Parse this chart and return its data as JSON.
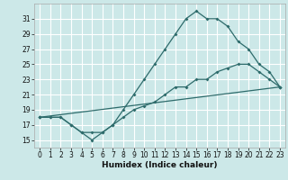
{
  "title": "",
  "xlabel": "Humidex (Indice chaleur)",
  "ylabel": "",
  "background_color": "#cce8e8",
  "line_color": "#2d6b6b",
  "grid_color": "#ffffff",
  "xlim": [
    -0.5,
    23.5
  ],
  "ylim": [
    14.0,
    33.0
  ],
  "xticks": [
    0,
    1,
    2,
    3,
    4,
    5,
    6,
    7,
    8,
    9,
    10,
    11,
    12,
    13,
    14,
    15,
    16,
    17,
    18,
    19,
    20,
    21,
    22,
    23
  ],
  "yticks": [
    15,
    17,
    19,
    21,
    23,
    25,
    27,
    29,
    31
  ],
  "line1_x": [
    0,
    1,
    2,
    3,
    4,
    5,
    6,
    7,
    8,
    9,
    10,
    11,
    12,
    13,
    14,
    15,
    16,
    17,
    18,
    19,
    20,
    21,
    22,
    23
  ],
  "line1_y": [
    18,
    18,
    18,
    17,
    16,
    15,
    16,
    17,
    19,
    21,
    23,
    25,
    27,
    29,
    31,
    32,
    31,
    31,
    30,
    28,
    27,
    25,
    24,
    22
  ],
  "line2_x": [
    0,
    1,
    2,
    3,
    4,
    5,
    6,
    7,
    8,
    9,
    10,
    11,
    12,
    13,
    14,
    15,
    16,
    17,
    18,
    19,
    20,
    21,
    22,
    23
  ],
  "line2_y": [
    18,
    18,
    18,
    17,
    16,
    16,
    16,
    17,
    18,
    19,
    19.5,
    20,
    21,
    22,
    22,
    23,
    23,
    24,
    24.5,
    25,
    25,
    24,
    23,
    22
  ],
  "line3_x": [
    0,
    23
  ],
  "line3_y": [
    18,
    22
  ]
}
